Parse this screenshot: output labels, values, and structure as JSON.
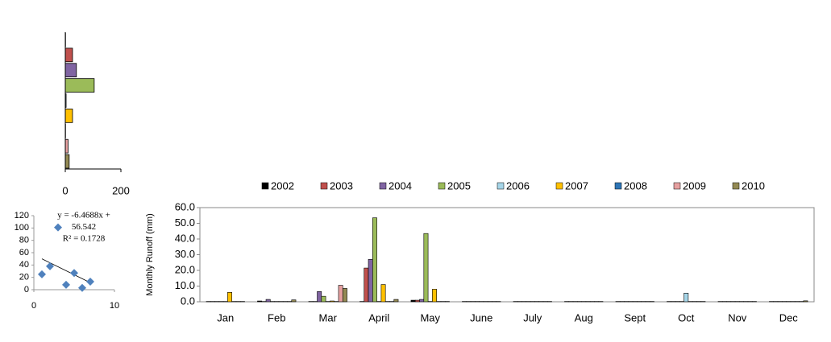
{
  "chart_data": [
    {
      "type": "hbar",
      "categories": [
        null,
        null,
        null,
        null,
        null,
        null,
        null,
        null,
        null
      ],
      "values": [
        1,
        26,
        40,
        104,
        3,
        26,
        1,
        10,
        14
      ],
      "colors": [
        "#000000",
        "#c0504d",
        "#8064a2",
        "#9bbb59",
        "#a5d5e8",
        "#ffc000",
        "#2e75b6",
        "#e6a0a0",
        "#948a54"
      ],
      "xlim": [
        0,
        200
      ],
      "xticks": [
        0,
        200
      ]
    },
    {
      "type": "scatter",
      "x": [
        1,
        2,
        3,
        4,
        5,
        6,
        7
      ],
      "values": [
        25,
        38,
        101,
        8,
        27,
        3,
        13
      ],
      "color": "#4f81bd",
      "annotations": [
        "y = -6.4688x +",
        "56.542",
        "R² = 0.1728"
      ],
      "xlim": [
        0,
        10
      ],
      "xticks": [
        0,
        10
      ],
      "ylim": [
        0,
        120
      ],
      "yticks": [
        0,
        20,
        40,
        60,
        80,
        100,
        120
      ]
    },
    {
      "type": "bar",
      "y_label": "Monthly  Runoff (mm)",
      "categories": [
        "Jan",
        "Feb",
        "Mar",
        "April",
        "May",
        "June",
        "July",
        "Aug",
        "Sept",
        "Oct",
        "Nov",
        "Dec"
      ],
      "series": [
        {
          "name": "2002",
          "color": "#000000",
          "values": [
            0.2,
            0.5,
            0.2,
            0.2,
            1,
            0.2,
            0.2,
            0.2,
            0.2,
            0.2,
            0.2,
            0.2
          ]
        },
        {
          "name": "2003",
          "color": "#c0504d",
          "values": [
            0.2,
            0.2,
            0.2,
            21.5,
            1,
            0.2,
            0.2,
            0.2,
            0.2,
            0.2,
            0.2,
            0.2
          ]
        },
        {
          "name": "2004",
          "color": "#8064a2",
          "values": [
            0.2,
            1.5,
            6.5,
            27,
            1.5,
            0.2,
            0.2,
            0.2,
            0.2,
            0.2,
            0.2,
            0.2
          ]
        },
        {
          "name": "2005",
          "color": "#9bbb59",
          "values": [
            0.2,
            0.2,
            3.5,
            53.5,
            43.5,
            0.2,
            0.2,
            0.2,
            0.2,
            0.2,
            0.2,
            0.2
          ]
        },
        {
          "name": "2006",
          "color": "#a5d5e8",
          "values": [
            0.2,
            0.2,
            0.2,
            0.2,
            0.2,
            0.2,
            0.2,
            0.2,
            0.2,
            5.5,
            0.2,
            0.2
          ]
        },
        {
          "name": "2007",
          "color": "#ffc000",
          "values": [
            6,
            0.2,
            0.5,
            11,
            8,
            0.2,
            0.2,
            0.2,
            0.2,
            0.2,
            0.2,
            0.2
          ]
        },
        {
          "name": "2008",
          "color": "#2e75b6",
          "values": [
            0.2,
            0.2,
            0.2,
            0.2,
            0.2,
            0.2,
            0.2,
            0.2,
            0.2,
            0.2,
            0.2,
            0.2
          ]
        },
        {
          "name": "2009",
          "color": "#e6a0a0",
          "values": [
            0.2,
            0.2,
            10.5,
            0.2,
            0.2,
            0.2,
            0.2,
            0.2,
            0.2,
            0.2,
            0.2,
            0.2
          ]
        },
        {
          "name": "2010",
          "color": "#948a54",
          "values": [
            0.2,
            1.2,
            8.5,
            1.5,
            0.2,
            0.2,
            0.2,
            0.2,
            0.2,
            0.2,
            0.2,
            0.6
          ]
        }
      ],
      "ylim": [
        0,
        60
      ],
      "yticks": [
        {
          "value": 0,
          "label": "0.0"
        },
        {
          "value": 10,
          "label": "10.0"
        },
        {
          "value": 20,
          "label": "20.0"
        },
        {
          "value": 30,
          "label": "30.0"
        },
        {
          "value": 40,
          "label": "40.0"
        },
        {
          "value": 50,
          "label": "50.0"
        },
        {
          "value": 60,
          "label": "60.0"
        }
      ]
    }
  ]
}
